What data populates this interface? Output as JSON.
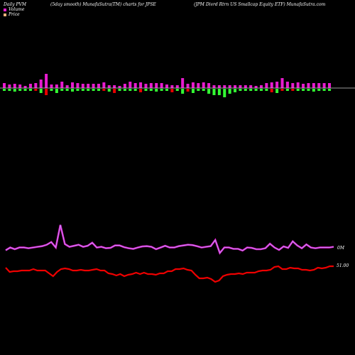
{
  "header": {
    "left": "Daily PVM",
    "middle": "(5day smooth) MunafaSutra(TM) charts for JPSE",
    "right": "(JPM Divrd Rtrn US Smallcap Equity ETF) MunafaSutra.com"
  },
  "legend": [
    {
      "label": "Volume",
      "color": "#e81ccf"
    },
    {
      "label": "Price",
      "color": "#f1b37a"
    }
  ],
  "colors": {
    "bar_up": "#e81ccf",
    "bar_down": "#e80000",
    "bar_green": "#33ff33",
    "volume_line_outer": "#e81ccf",
    "volume_line_inner": "#b1a8ff",
    "price_line": "#ee0000",
    "baseline": "#cccccc"
  },
  "chart_data": {
    "type": "line",
    "right_labels": {
      "volume": "0M",
      "price": "51.00"
    },
    "bars": {
      "heights_up": [
        7,
        5,
        6,
        5,
        3,
        6,
        7,
        12,
        20,
        5,
        5,
        9,
        4,
        8,
        7,
        6,
        6,
        6,
        6,
        8,
        4,
        4,
        3,
        6,
        9,
        7,
        8,
        6,
        7,
        7,
        7,
        5,
        4,
        4,
        14,
        6,
        8,
        7,
        8,
        7,
        4,
        4,
        4,
        4,
        4,
        4,
        4,
        4,
        3,
        4,
        7,
        8,
        9,
        14,
        9,
        7,
        8,
        6,
        7,
        7,
        7,
        7,
        7
      ],
      "heights_down": [
        3,
        3,
        4,
        3,
        3,
        3,
        3,
        6,
        9,
        3,
        6,
        3,
        3,
        4,
        3,
        3,
        3,
        3,
        3,
        3,
        4,
        6,
        3,
        3,
        3,
        3,
        5,
        3,
        3,
        4,
        3,
        3,
        5,
        3,
        7,
        4,
        6,
        3,
        3,
        7,
        9,
        9,
        12,
        7,
        5,
        3,
        3,
        3,
        3,
        3,
        3,
        5,
        6,
        3,
        3,
        3,
        3,
        3,
        3,
        4,
        3,
        3,
        3
      ],
      "color_keys": [
        "green",
        "green",
        "green",
        "green",
        "green",
        "green",
        "red",
        "green",
        "red",
        "green",
        "green",
        "green",
        "green",
        "green",
        "green",
        "green",
        "green",
        "green",
        "green",
        "red",
        "green",
        "red",
        "green",
        "green",
        "green",
        "green",
        "red",
        "green",
        "green",
        "green",
        "green",
        "green",
        "red",
        "green",
        "green",
        "red",
        "green",
        "green",
        "green",
        "green",
        "green",
        "green",
        "green",
        "green",
        "green",
        "green",
        "green",
        "green",
        "green",
        "green",
        "green",
        "red",
        "green",
        "red",
        "green",
        "red",
        "green",
        "green",
        "green",
        "green",
        "green",
        "green",
        "green"
      ]
    },
    "volume_series": [
      88,
      80,
      85,
      80,
      80,
      82,
      80,
      78,
      76,
      72,
      64,
      80,
      14,
      70,
      78,
      75,
      72,
      78,
      75,
      66,
      80,
      78,
      82,
      81,
      74,
      74,
      79,
      82,
      84,
      80,
      77,
      76,
      78,
      85,
      80,
      75,
      80,
      80,
      76,
      74,
      72,
      73,
      76,
      80,
      78,
      76,
      58,
      96,
      80,
      80,
      84,
      84,
      89,
      80,
      81,
      85,
      85,
      82,
      69,
      80,
      87,
      77,
      81,
      62,
      74,
      82,
      71,
      80,
      82,
      80,
      80,
      80,
      78
    ],
    "price_series": [
      100,
      106,
      105,
      105,
      104,
      104,
      104,
      102,
      104,
      104,
      104,
      108,
      112,
      106,
      102,
      101,
      102,
      104,
      104,
      103,
      104,
      104,
      103,
      102,
      104,
      104,
      108,
      109,
      111,
      109,
      112,
      110,
      109,
      107,
      109,
      107,
      109,
      109,
      110,
      108,
      108,
      105,
      105,
      102,
      102,
      101,
      103,
      104,
      110,
      115,
      115,
      114,
      116,
      120,
      118,
      112,
      110,
      109,
      109,
      108,
      109,
      107,
      107,
      107,
      105,
      104,
      104,
      103,
      99,
      98,
      102,
      102,
      100,
      101,
      101,
      103,
      103,
      104,
      103,
      100,
      101,
      100,
      98,
      98
    ],
    "x_range": [
      0,
      62
    ],
    "volume_ylim": [
      0,
      100
    ],
    "price_ylim": [
      0,
      130
    ]
  }
}
